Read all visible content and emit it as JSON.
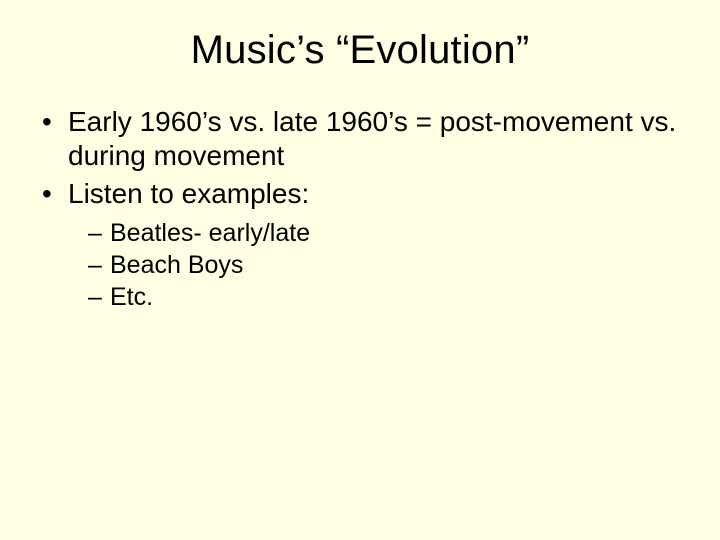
{
  "slide": {
    "background_color": "#ffffe3",
    "text_color": "#000000",
    "font_family": "Arial",
    "title": {
      "text": "Music’s “Evolution”",
      "fontsize": 40,
      "align": "center"
    },
    "bullets_level1_fontsize": 28,
    "bullets_level2_fontsize": 25,
    "bullets": [
      {
        "text": "Early 1960’s vs. late 1960’s = post-movement vs. during movement"
      },
      {
        "text": "Listen to examples:",
        "children": [
          {
            "text": "Beatles- early/late"
          },
          {
            "text": "Beach Boys"
          },
          {
            "text": "Etc."
          }
        ]
      }
    ]
  }
}
